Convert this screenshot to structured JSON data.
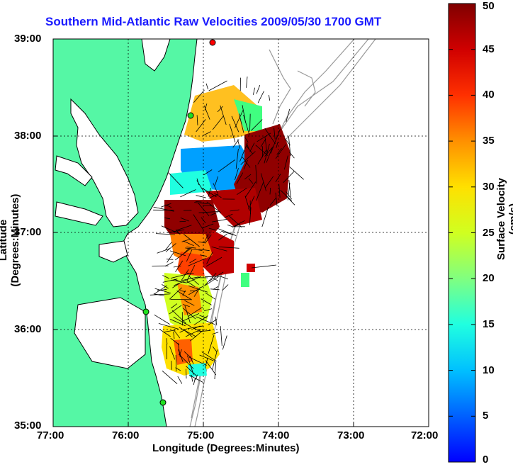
{
  "title": "Southern Mid-Atlantic Raw Velocities 2009/05/30 1700 GMT",
  "axes": {
    "xlabel": "Longitude (Degrees:Minutes)",
    "ylabel": "Latitude (Degrees:Minutes)",
    "x_ticks": [
      "77:00",
      "76:00",
      "75:00",
      "74:00",
      "73:00",
      "72:00"
    ],
    "y_ticks": [
      "39:00",
      "38:00",
      "37:00",
      "36:00",
      "35:00"
    ]
  },
  "colorbar": {
    "label": "Surface Velocity (cm/s)",
    "ticks": [
      "50",
      "45",
      "40",
      "35",
      "30",
      "25",
      "20",
      "15",
      "10",
      "5",
      "0"
    ],
    "range": [
      0,
      50
    ]
  },
  "colors": {
    "land": "#55f7a5",
    "water": "#ffffff",
    "title": "#1a1aff",
    "bathymetry": "#999999"
  },
  "grid": true
}
